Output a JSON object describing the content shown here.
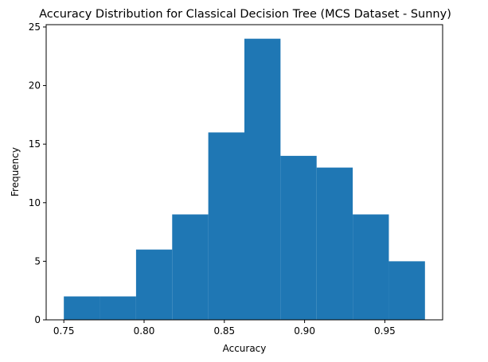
{
  "chart_data": {
    "type": "bar",
    "title": "Accuracy Distribution for Classical Decision Tree (MCS Dataset - Sunny)",
    "xlabel": "Accuracy",
    "ylabel": "Frequency",
    "bin_edges": [
      0.75,
      0.7725,
      0.795,
      0.8175,
      0.84,
      0.8625,
      0.885,
      0.9075,
      0.93,
      0.9525,
      0.975
    ],
    "values": [
      2,
      2,
      6,
      9,
      16,
      24,
      14,
      13,
      9,
      5
    ],
    "xlim": [
      0.739,
      0.986
    ],
    "ylim": [
      0,
      25.2
    ],
    "xticks": [
      0.75,
      0.8,
      0.85,
      0.9,
      0.95
    ],
    "xtick_labels": [
      "0.75",
      "0.80",
      "0.85",
      "0.90",
      "0.95"
    ],
    "yticks": [
      0,
      5,
      10,
      15,
      20,
      25
    ],
    "ytick_labels": [
      "0",
      "5",
      "10",
      "15",
      "20",
      "25"
    ],
    "bar_color": "#1f77b4",
    "grid": false,
    "legend": "none"
  }
}
